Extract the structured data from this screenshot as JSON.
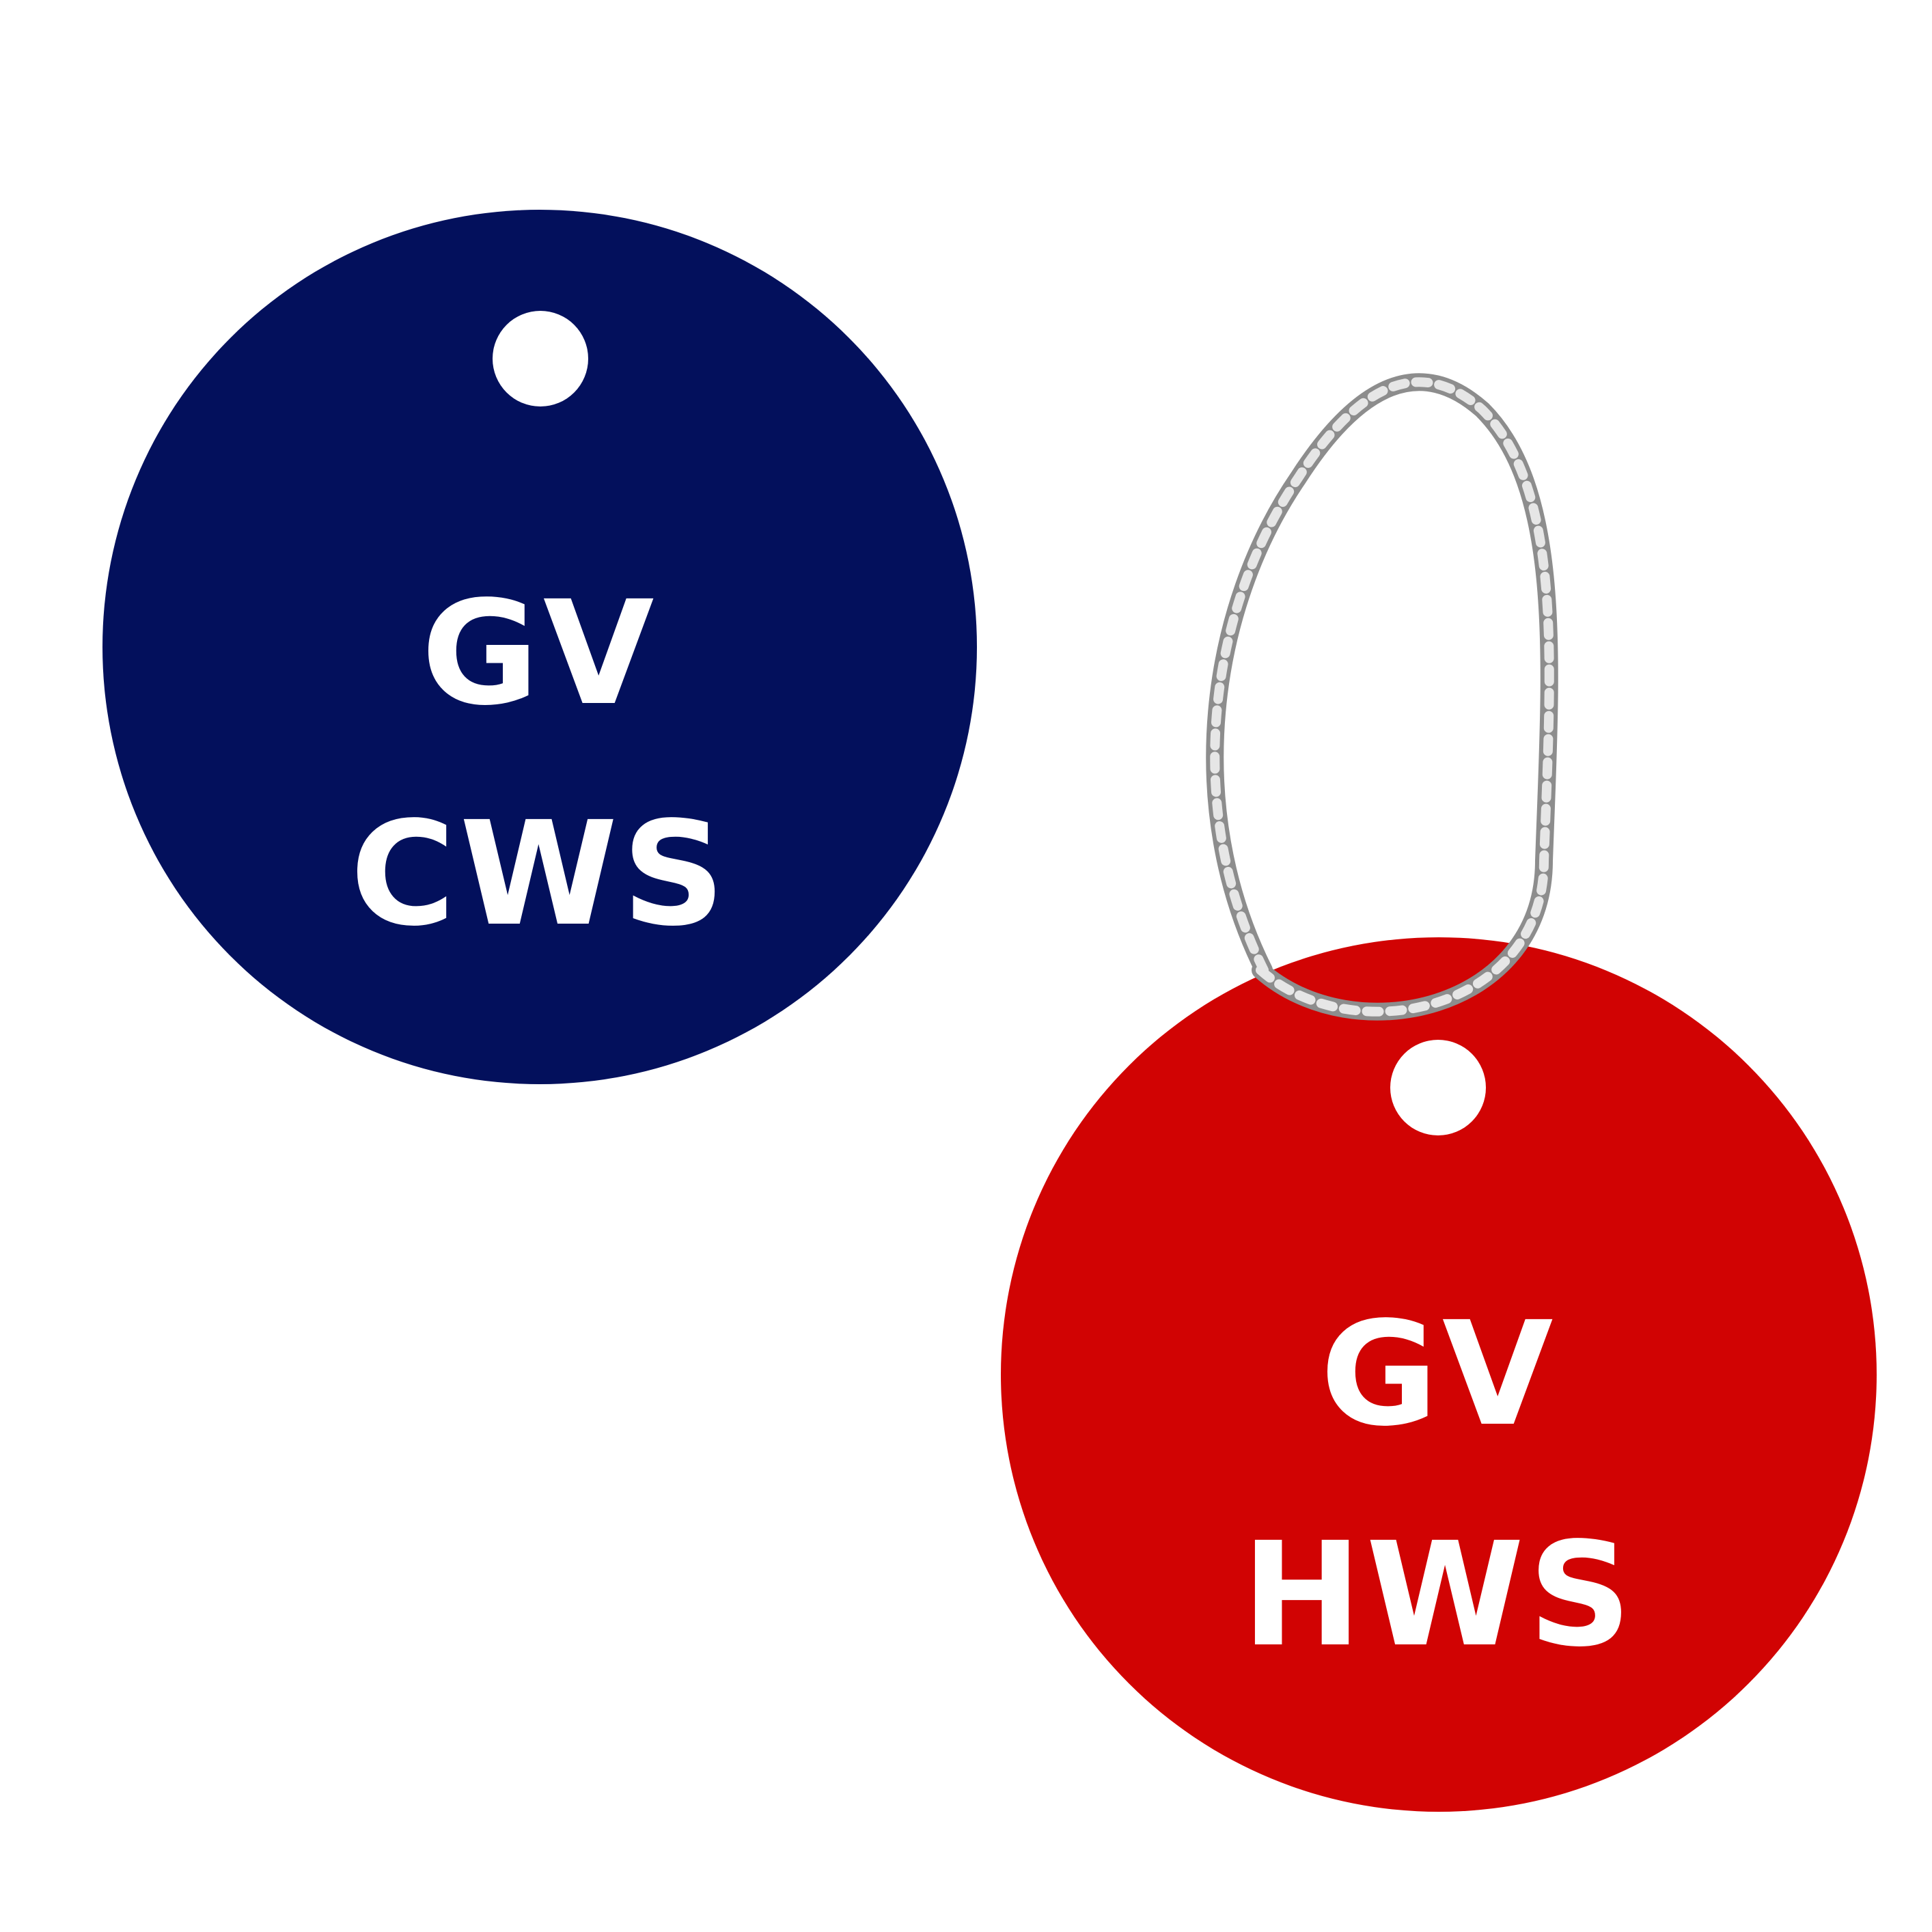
{
  "tags": [
    {
      "color": "#03105c",
      "line1": "GV",
      "line2": "CWS",
      "has_chain": false
    },
    {
      "color": "#d10303",
      "line1": "GV",
      "line2": "HWS",
      "has_chain": true
    }
  ],
  "chain_color": "#b5b5b5",
  "hole_color": "#ffffff",
  "text_color": "#ffffff"
}
